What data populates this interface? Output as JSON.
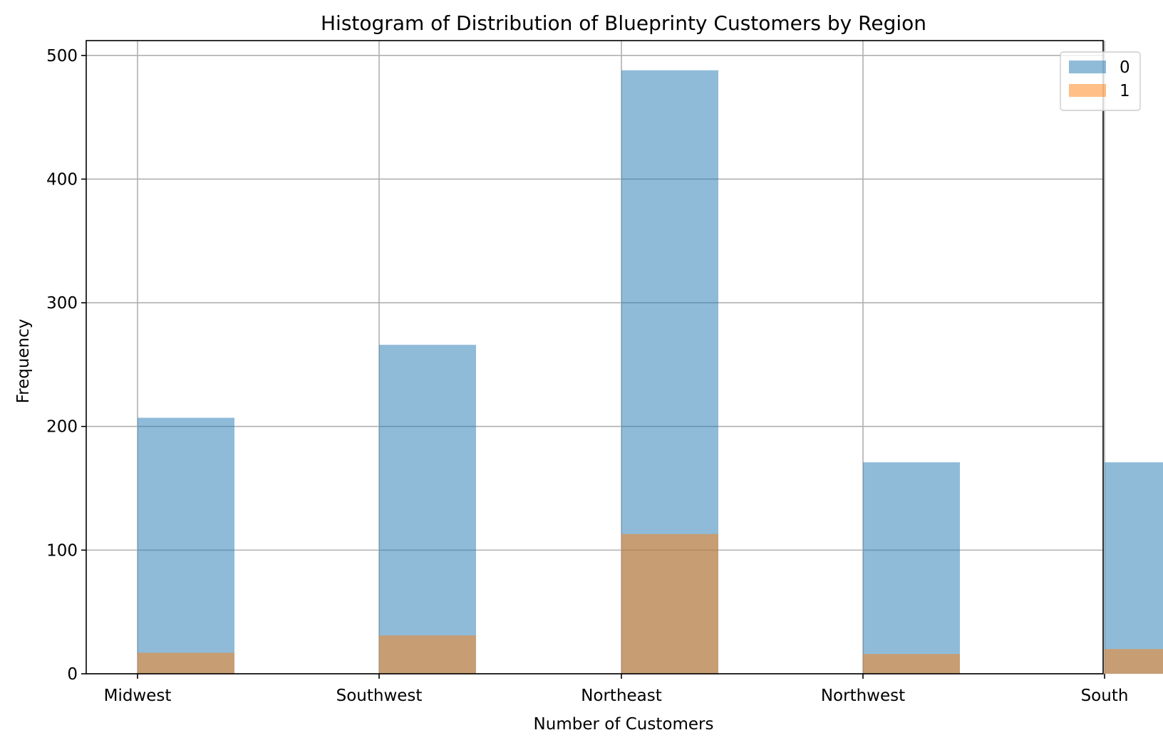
{
  "chart_data": {
    "type": "bar",
    "title": "Histogram of Distribution of Blueprinty Customers by Region",
    "xlabel": "Number of Customers",
    "ylabel": "Frequency",
    "categories": [
      "Midwest",
      "Southwest",
      "Northeast",
      "Northwest",
      "South"
    ],
    "ylim": [
      0,
      512
    ],
    "yticks": [
      0,
      100,
      200,
      300,
      400,
      500
    ],
    "grid": true,
    "legend_position": "top-right",
    "overlay": true,
    "series": [
      {
        "name": "0",
        "color": "#1f77b4",
        "opacity": 0.5,
        "values": [
          207,
          266,
          488,
          171,
          171
        ]
      },
      {
        "name": "1",
        "color": "#ff7f0e",
        "opacity": 0.5,
        "values": [
          17,
          31,
          113,
          16,
          20
        ]
      }
    ]
  }
}
